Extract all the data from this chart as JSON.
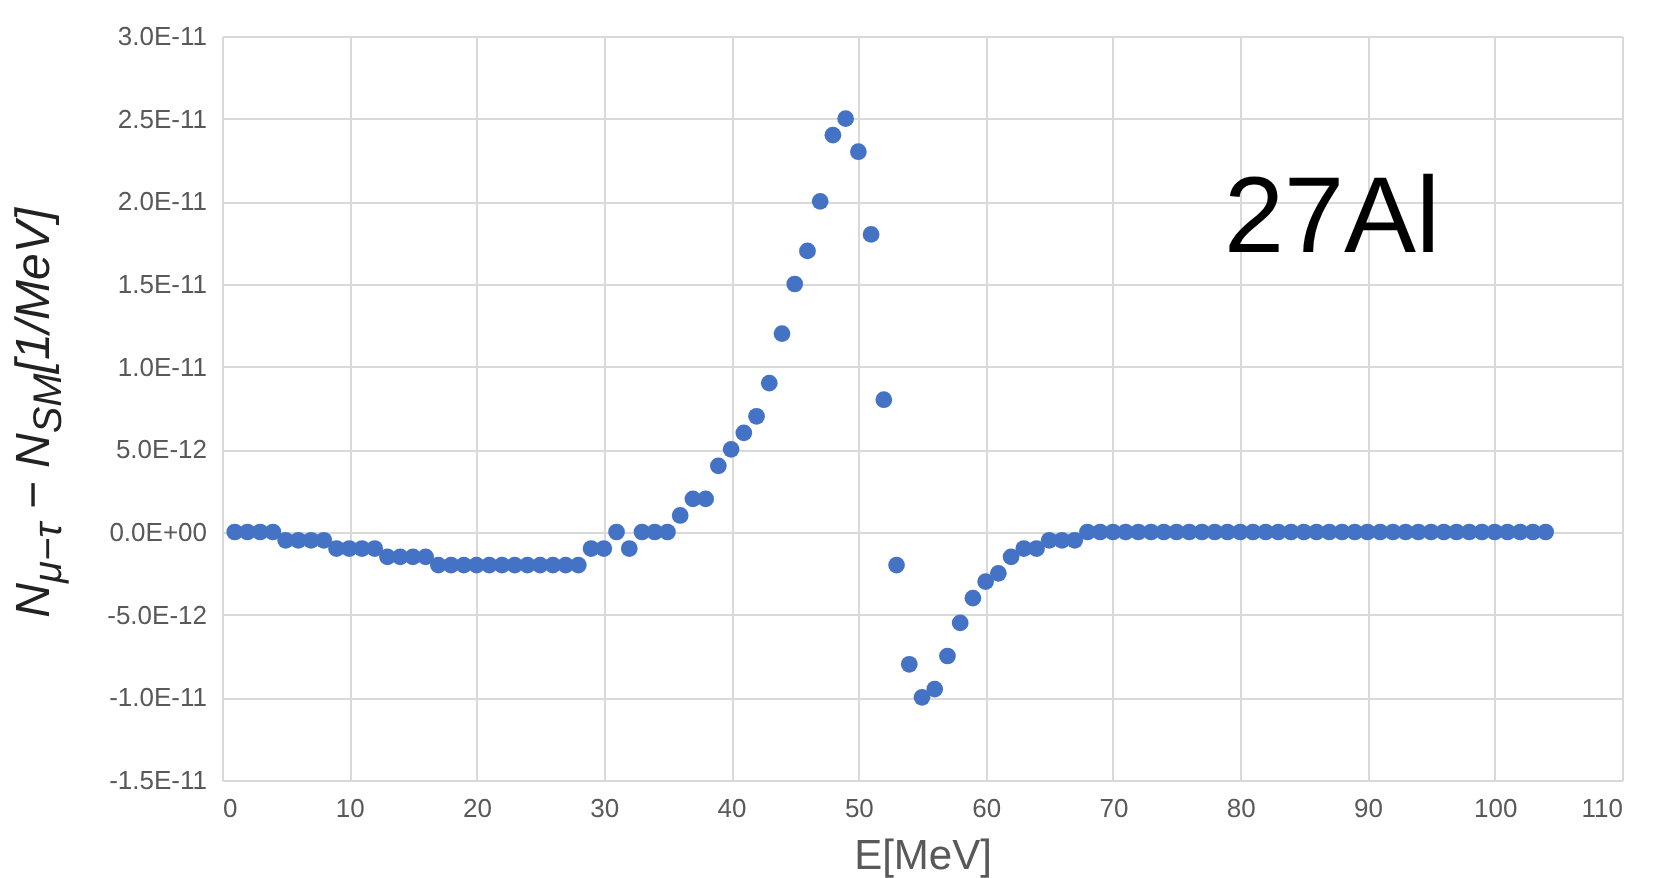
{
  "chart_data": {
    "type": "scatter",
    "xlabel": "E[MeV]",
    "ylabel": "N$_{μ−τ}$ − N$_{SM}$[1/MeV]",
    "annotations": [
      "27Al"
    ],
    "x": [
      1,
      2,
      3,
      4,
      5,
      6,
      7,
      8,
      9,
      10,
      11,
      12,
      13,
      14,
      15,
      16,
      17,
      18,
      19,
      20,
      21,
      22,
      23,
      24,
      25,
      26,
      27,
      28,
      29,
      30,
      31,
      32,
      33,
      34,
      35,
      36,
      37,
      38,
      39,
      40,
      41,
      42,
      43,
      44,
      45,
      46,
      47,
      48,
      49,
      50,
      51,
      52,
      53,
      54,
      55,
      56,
      57,
      58,
      59,
      60,
      61,
      62,
      63,
      64,
      65,
      66,
      67,
      68,
      69,
      70,
      71,
      72,
      73,
      74,
      75,
      76,
      77,
      78,
      79,
      80,
      81,
      82,
      83,
      84,
      85,
      86,
      87,
      88,
      89,
      90,
      91,
      92,
      93,
      94,
      95,
      96,
      97,
      98,
      99,
      100,
      101,
      102,
      103,
      104
    ],
    "series": [
      {
        "color": "#4472c4",
        "values": [
          0,
          0,
          0,
          0,
          -5e-13,
          -5e-13,
          -5e-13,
          -5e-13,
          -1e-12,
          -1e-12,
          -1e-12,
          -1e-12,
          -1.5e-12,
          -1.5e-12,
          -1.5e-12,
          -1.5e-12,
          -2e-12,
          -2e-12,
          -2e-12,
          -2e-12,
          -2e-12,
          -2e-12,
          -2e-12,
          -2e-12,
          -2e-12,
          -2e-12,
          -2e-12,
          -2e-12,
          -1e-12,
          -1e-12,
          0,
          -1e-12,
          0,
          0,
          0,
          1e-12,
          2e-12,
          2e-12,
          4e-12,
          5e-12,
          6e-12,
          7e-12,
          9e-12,
          1.2e-11,
          1.5e-11,
          1.7e-11,
          2e-11,
          2.4e-11,
          2.5e-11,
          2.3e-11,
          1.8e-11,
          8e-12,
          -2e-12,
          -8e-12,
          -1e-11,
          -9.5e-12,
          -7.5e-12,
          -5.5e-12,
          -4e-12,
          -3e-12,
          -2.5e-12,
          -1.5e-12,
          -1e-12,
          -1e-12,
          -5e-13,
          -5e-13,
          -5e-13,
          0,
          0,
          0,
          0,
          0,
          0,
          0,
          0,
          0,
          0,
          0,
          0,
          0,
          0,
          0,
          0,
          0,
          0,
          0,
          0,
          0,
          0,
          0,
          0,
          0,
          0,
          0,
          0,
          0,
          0,
          0,
          0,
          0,
          0,
          0,
          0,
          0
        ]
      }
    ],
    "xlim": [
      0,
      110
    ],
    "xticks": [
      0,
      10,
      20,
      30,
      40,
      50,
      60,
      70,
      80,
      90,
      100,
      110
    ],
    "ylim": [
      -1.5e-11,
      3e-11
    ],
    "yticks": [
      {
        "value": -1.5e-11,
        "label": "-1.5E-11"
      },
      {
        "value": -1e-11,
        "label": "-1.0E-11"
      },
      {
        "value": -5e-12,
        "label": "-5.0E-12"
      },
      {
        "value": 0,
        "label": "0.0E+00"
      },
      {
        "value": 5e-12,
        "label": "5.0E-12"
      },
      {
        "value": 1e-11,
        "label": "1.0E-11"
      },
      {
        "value": 1.5e-11,
        "label": "1.5E-11"
      },
      {
        "value": 2e-11,
        "label": "2.0E-11"
      },
      {
        "value": 2.5e-11,
        "label": "2.5E-11"
      },
      {
        "value": 3e-11,
        "label": "3.0E-11"
      }
    ],
    "grid": true,
    "marker": "circle"
  }
}
